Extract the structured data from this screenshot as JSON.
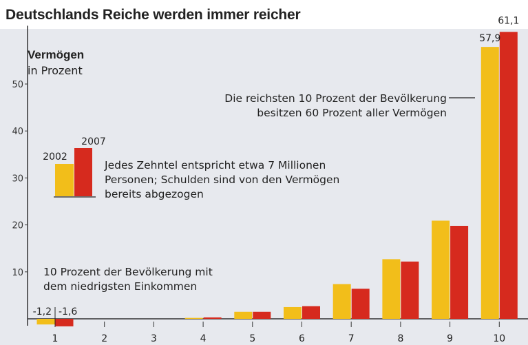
{
  "title": "Deutschlands Reiche werden immer reicher",
  "colors": {
    "series_2002": "#f2be1a",
    "series_2007": "#d62a1e",
    "axis": "#333333",
    "panel": "#e7e9ee"
  },
  "annotations": {
    "top_decile": [
      "Die reichsten 10 Prozent der Bevölkerung",
      "besitzen 60 Prozent aller Vermögen"
    ],
    "legend_note": [
      "Jedes Zehntel entspricht etwa 7 Millionen",
      "Personen; Schulden sind von den Vermögen",
      "bereits abgezogen"
    ],
    "lowest_decile": [
      "10 Prozent der Bevölkerung mit",
      "dem niedrigsten Einkommen"
    ]
  },
  "chart_data": {
    "type": "bar",
    "title": "Deutschlands Reiche werden immer reicher",
    "ylabel": "Vermögen",
    "ylabel_unit": "in Prozent",
    "xlabel": "",
    "categories": [
      "1",
      "2",
      "3",
      "4",
      "5",
      "6",
      "7",
      "8",
      "9",
      "10"
    ],
    "series": [
      {
        "name": "2002",
        "values": [
          -1.2,
          0,
          0,
          0.2,
          1.5,
          2.5,
          7.4,
          12.7,
          20.9,
          57.9
        ]
      },
      {
        "name": "2007",
        "values": [
          -1.6,
          0,
          0,
          0.3,
          1.5,
          2.7,
          6.4,
          12.2,
          19.8,
          61.1
        ]
      }
    ],
    "data_labels": {
      "2002": {
        "1": "-1,2",
        "10": "57,9"
      },
      "2007": {
        "1": "-1,6",
        "10": "61,1"
      }
    },
    "yticks": [
      "10",
      "20",
      "30",
      "40",
      "50"
    ],
    "ylim": [
      -2,
      63
    ],
    "legend": [
      "2002",
      "2007"
    ],
    "legend_placement": "left-middle",
    "grid": false
  }
}
